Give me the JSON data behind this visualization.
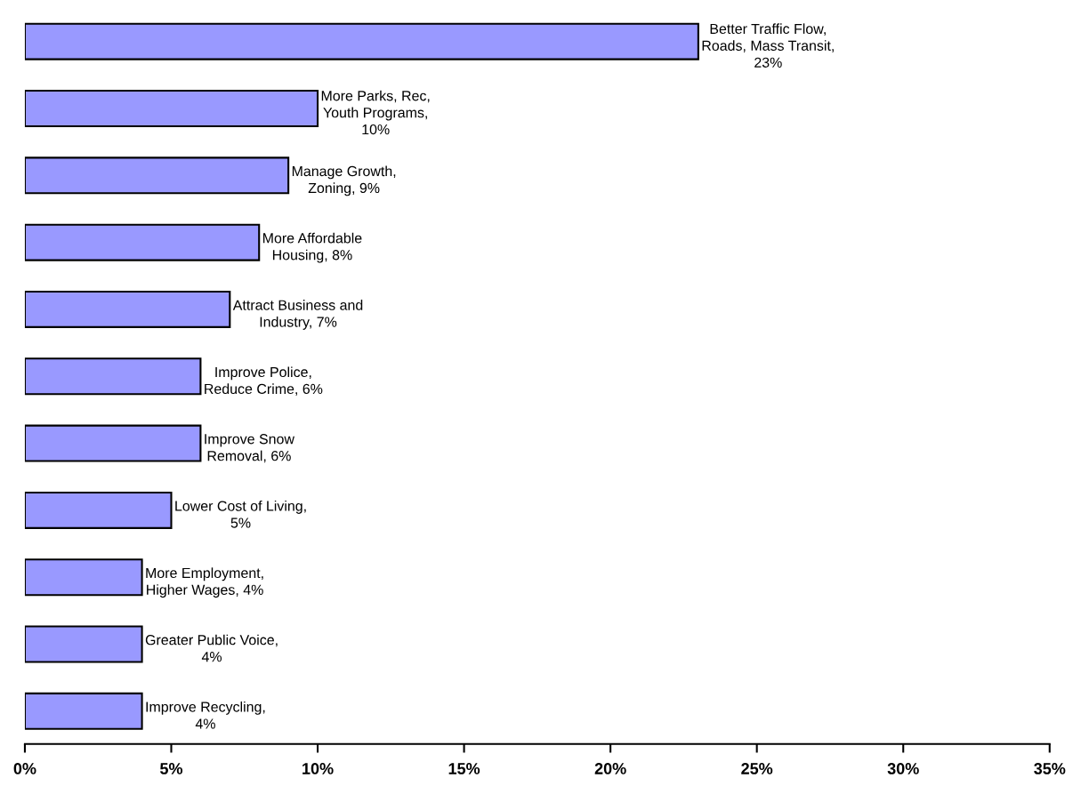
{
  "chart_data": {
    "type": "bar",
    "orientation": "horizontal",
    "categories": [
      null,
      null,
      null,
      null,
      null,
      null,
      null,
      null,
      null,
      null,
      null
    ],
    "values": [
      23,
      10,
      9,
      8,
      7,
      6,
      6,
      5,
      4,
      4,
      4
    ],
    "value_labels": [
      "Better Traffic Flow,\nRoads, Mass Transit,\n23%",
      "More Parks, Rec,\nYouth Programs,\n10%",
      "Manage Growth,\nZoning, 9%",
      "More Affordable\nHousing, 8%",
      "Attract Business and\nIndustry, 7%",
      "Improve Police,\nReduce Crime, 6%",
      "Improve Snow\nRemoval, 6%",
      "Lower Cost of Living,\n5%",
      "More Employment,\nHigher Wages, 4%",
      "Greater Public Voice,\n4%",
      "Improve Recycling,\n4%"
    ],
    "color": "#9999ff",
    "xlim": [
      0,
      35
    ],
    "xticks": [
      {
        "value": 0,
        "label": "0%"
      },
      {
        "value": 5,
        "label": "5%"
      },
      {
        "value": 10,
        "label": "10%"
      },
      {
        "value": 15,
        "label": "15%"
      },
      {
        "value": 20,
        "label": "20%"
      },
      {
        "value": 25,
        "label": "25%"
      },
      {
        "value": 30,
        "label": "30%"
      },
      {
        "value": 35,
        "label": "35%"
      }
    ],
    "tick_labels": "x",
    "grid": false,
    "legend": false
  }
}
